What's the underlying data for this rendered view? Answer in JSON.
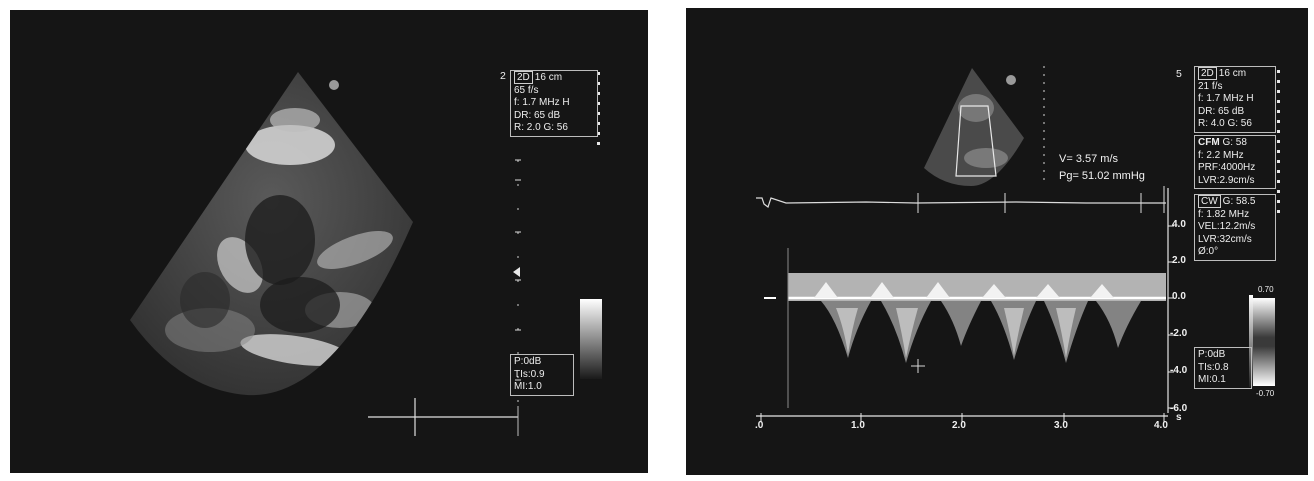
{
  "left_panel": {
    "frame_number": "2",
    "settings": {
      "mode": "2D",
      "depth": "16 cm",
      "frame_rate": "65 f/s",
      "frequency": "f: 1.7 MHz H",
      "dynamic_range": "DR: 65 dB",
      "r_g": "R: 2.0   G: 56"
    },
    "power": {
      "p": "P:0dB",
      "tis": "TIs:0.9",
      "mi": "MI:1.0"
    }
  },
  "right_panel": {
    "frame_number": "5",
    "settings_2d": {
      "mode": "2D",
      "depth": "16 cm",
      "frame_rate": "21 f/s",
      "frequency": "f: 1.7 MHz H",
      "dynamic_range": "DR: 65 dB",
      "r_g": "R: 4.0   G: 56"
    },
    "settings_cfm": {
      "mode": "CFM",
      "gain": "G: 58",
      "frequency": "f: 2.2 MHz",
      "prf": "PRF:4000Hz",
      "lvr": "LVR:2.9cm/s"
    },
    "settings_cw": {
      "mode": "CW",
      "gain": "G: 58.5",
      "frequency": "f: 1.82 MHz",
      "vel": "VEL:12.2m/s",
      "lvr": "LVR:32cm/s",
      "angle": "Ø:0°"
    },
    "measurement": {
      "velocity": "V=  3.57 m/s",
      "gradient": "Pg= 51.02 mmHg"
    },
    "velocity_scale": [
      "4.0",
      "2.0",
      "0.0",
      "-2.0",
      "-4.0",
      "-6.0"
    ],
    "time_scale": [
      ".0",
      "1.0",
      "2.0",
      "3.0",
      "4.0"
    ],
    "time_unit": "s",
    "colorbar": {
      "top": "0.70",
      "bottom": "-0.70"
    },
    "power": {
      "p": "P:0dB",
      "tis": "TIs:0.8",
      "mi": "MI:0.1"
    }
  }
}
